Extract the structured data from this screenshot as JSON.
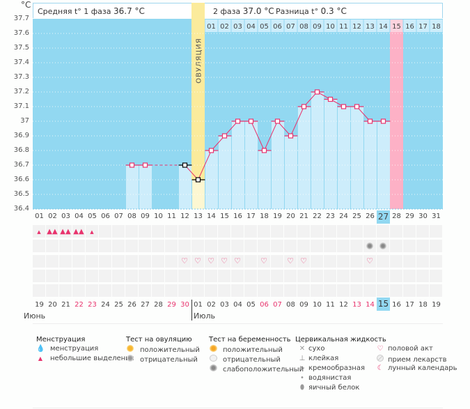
{
  "header": {
    "unit": "°C",
    "phase1_label": "Средняя t° 1 фаза",
    "phase1_value": "36.7 °C",
    "phase2_label": "2 фаза",
    "phase2_value": "37.0 °C",
    "diff_label": "Разница t°",
    "diff_value": "0.3 °C",
    "ovulation_label": "ОВУЛЯЦИЯ"
  },
  "colors": {
    "plot_bg": "#92d8f1",
    "bar_fill": "#cdedfb",
    "ovulation": "#fbeb9c",
    "ovulation_low": "#fdf7d2",
    "expected_period": "#fdb1c6",
    "line": "#e8336d",
    "marker_border": "#e8336d",
    "black_marker": "#000000",
    "weekend": "#e8336d",
    "today": "#92d8f1"
  },
  "chart_data": {
    "type": "line",
    "title": "",
    "xlabel": "",
    "ylabel": "°C",
    "ylim": [
      36.4,
      37.7
    ],
    "yticks": [
      "36.4",
      "36.5",
      "36.6",
      "36.7",
      "36.8",
      "36.9",
      "37",
      "37.1",
      "37.2",
      "37.3",
      "37.4",
      "37.5",
      "37.6",
      "37.7"
    ],
    "grid": true,
    "cycle_days": [
      "01",
      "02",
      "03",
      "04",
      "05",
      "06",
      "07",
      "08",
      "09",
      "10",
      "11",
      "12",
      "13",
      "14",
      "15",
      "16",
      "17",
      "18",
      "19",
      "20",
      "21",
      "22",
      "23",
      "24",
      "25",
      "26",
      "27",
      "28",
      "29",
      "30",
      "31"
    ],
    "post_ovulation_days": [
      "01",
      "02",
      "03",
      "04",
      "05",
      "06",
      "07",
      "08",
      "09",
      "10",
      "11",
      "12",
      "13",
      "14",
      "15",
      "16",
      "17",
      "18"
    ],
    "ovulation_day": 13,
    "expected_period_day": 28,
    "today_day": 27,
    "series": [
      {
        "name": "Базальная температура",
        "points": [
          {
            "day": 8,
            "value": 36.7
          },
          {
            "day": 9,
            "value": 36.7
          },
          {
            "day": 12,
            "value": 36.7,
            "marker": "black"
          },
          {
            "day": 13,
            "value": 36.6,
            "marker": "black"
          },
          {
            "day": 14,
            "value": 36.8
          },
          {
            "day": 15,
            "value": 36.9
          },
          {
            "day": 16,
            "value": 37.0
          },
          {
            "day": 17,
            "value": 37.0
          },
          {
            "day": 18,
            "value": 36.8
          },
          {
            "day": 19,
            "value": 37.0
          },
          {
            "day": 20,
            "value": 36.9
          },
          {
            "day": 21,
            "value": 37.1
          },
          {
            "day": 22,
            "value": 37.2
          },
          {
            "day": 23,
            "value": 37.15
          },
          {
            "day": 24,
            "value": 37.1
          },
          {
            "day": 25,
            "value": 37.1
          },
          {
            "day": 26,
            "value": 37.0
          },
          {
            "day": 27,
            "value": 37.0
          }
        ]
      }
    ],
    "dashed_segments": [
      [
        9,
        12
      ]
    ]
  },
  "rows": {
    "menstruation": [
      {
        "day": 1,
        "type": "small"
      },
      {
        "day": 2,
        "type": "heavy"
      },
      {
        "day": 3,
        "type": "heavy"
      },
      {
        "day": 4,
        "type": "heavy"
      },
      {
        "day": 5,
        "type": "small"
      }
    ],
    "pregnancy_test": [
      {
        "day": 26,
        "type": "weak-positive"
      },
      {
        "day": 27,
        "type": "weak-positive"
      }
    ],
    "intercourse": [
      12,
      13,
      14,
      15,
      16,
      18,
      20,
      21,
      26
    ]
  },
  "calendar": {
    "dates": [
      "19",
      "20",
      "21",
      "22",
      "23",
      "24",
      "25",
      "26",
      "27",
      "28",
      "29",
      "30",
      "01",
      "02",
      "03",
      "04",
      "05",
      "06",
      "07",
      "08",
      "09",
      "10",
      "11",
      "12",
      "13",
      "14",
      "15",
      "16",
      "17",
      "18",
      "19"
    ],
    "weekend_indices": [
      3,
      4,
      10,
      11,
      17,
      18,
      24,
      25
    ],
    "today_index": 26,
    "month1": "Июнь",
    "month2": "Июль",
    "month_split_index": 12
  },
  "legend": {
    "menstruation": {
      "title": "Менструация",
      "items": [
        "менструация",
        "небольшие выделения"
      ]
    },
    "ovulation_test": {
      "title": "Тест на овуляцию",
      "items": [
        "положительный",
        "отрицательный"
      ]
    },
    "pregnancy_test": {
      "title": "Тест на беременность",
      "items": [
        "положительный",
        "отрицательный",
        "слабоположительный"
      ]
    },
    "cervical": {
      "title": "Цервикальная жидкость",
      "items": [
        "сухо",
        "клейкая",
        "кремообразная",
        "водянистая",
        "яичный белок"
      ]
    },
    "other": {
      "items": [
        "половой акт",
        "прием лекарств",
        "лунный календарь"
      ]
    }
  }
}
